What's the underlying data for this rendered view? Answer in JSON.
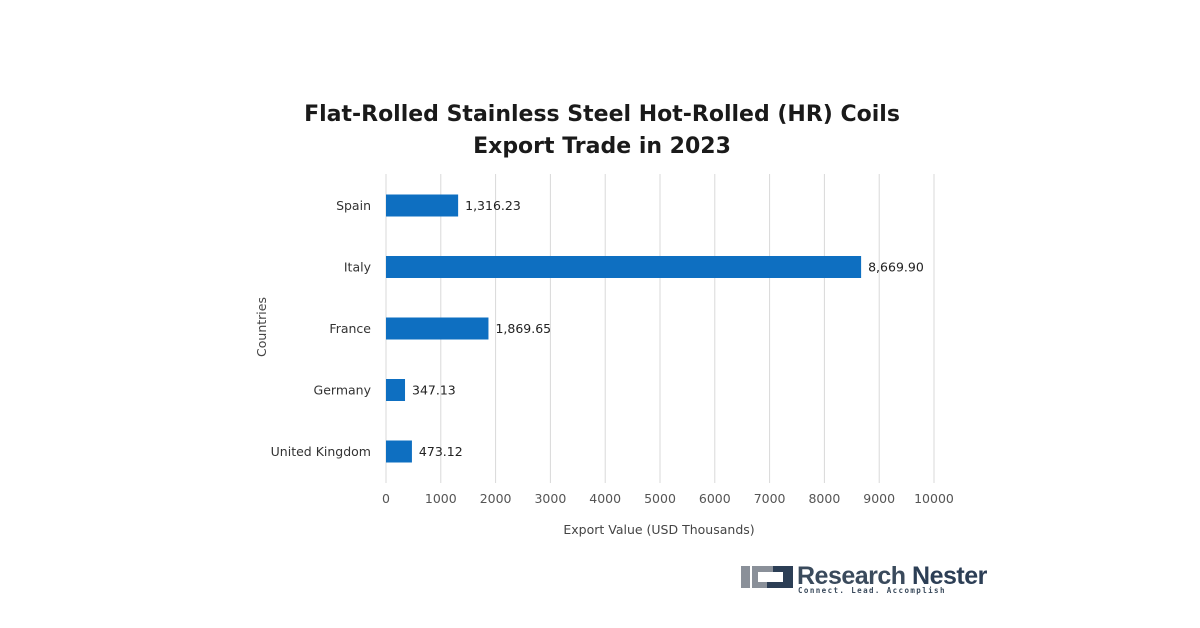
{
  "chart_data": {
    "type": "bar",
    "orientation": "horizontal",
    "title_lines": [
      "Flat-Rolled Stainless Steel Hot-Rolled (HR) Coils",
      "Export Trade in 2023"
    ],
    "xlabel": "Export Value (USD Thousands)",
    "ylabel": "Countries",
    "categories": [
      "Spain",
      "Italy",
      "France",
      "Germany",
      "United Kingdom"
    ],
    "values": [
      1316.23,
      8669.9,
      1869.65,
      347.13,
      473.12
    ],
    "value_labels": [
      "1,316.23",
      "8,669.90",
      "1,869.65",
      "347.13",
      "473.12"
    ],
    "xlim": [
      0,
      10000
    ],
    "xticks": [
      0,
      1000,
      2000,
      3000,
      4000,
      5000,
      6000,
      7000,
      8000,
      9000,
      10000
    ],
    "grid": "vertical",
    "legend": "none",
    "bar_color": "#0e6fc1"
  },
  "branding": {
    "name_part1": "Research ",
    "name_part2": "Nester",
    "tagline": "Connect. Lead. Accomplish",
    "logo_icon": "research-nester-logo-icon"
  }
}
